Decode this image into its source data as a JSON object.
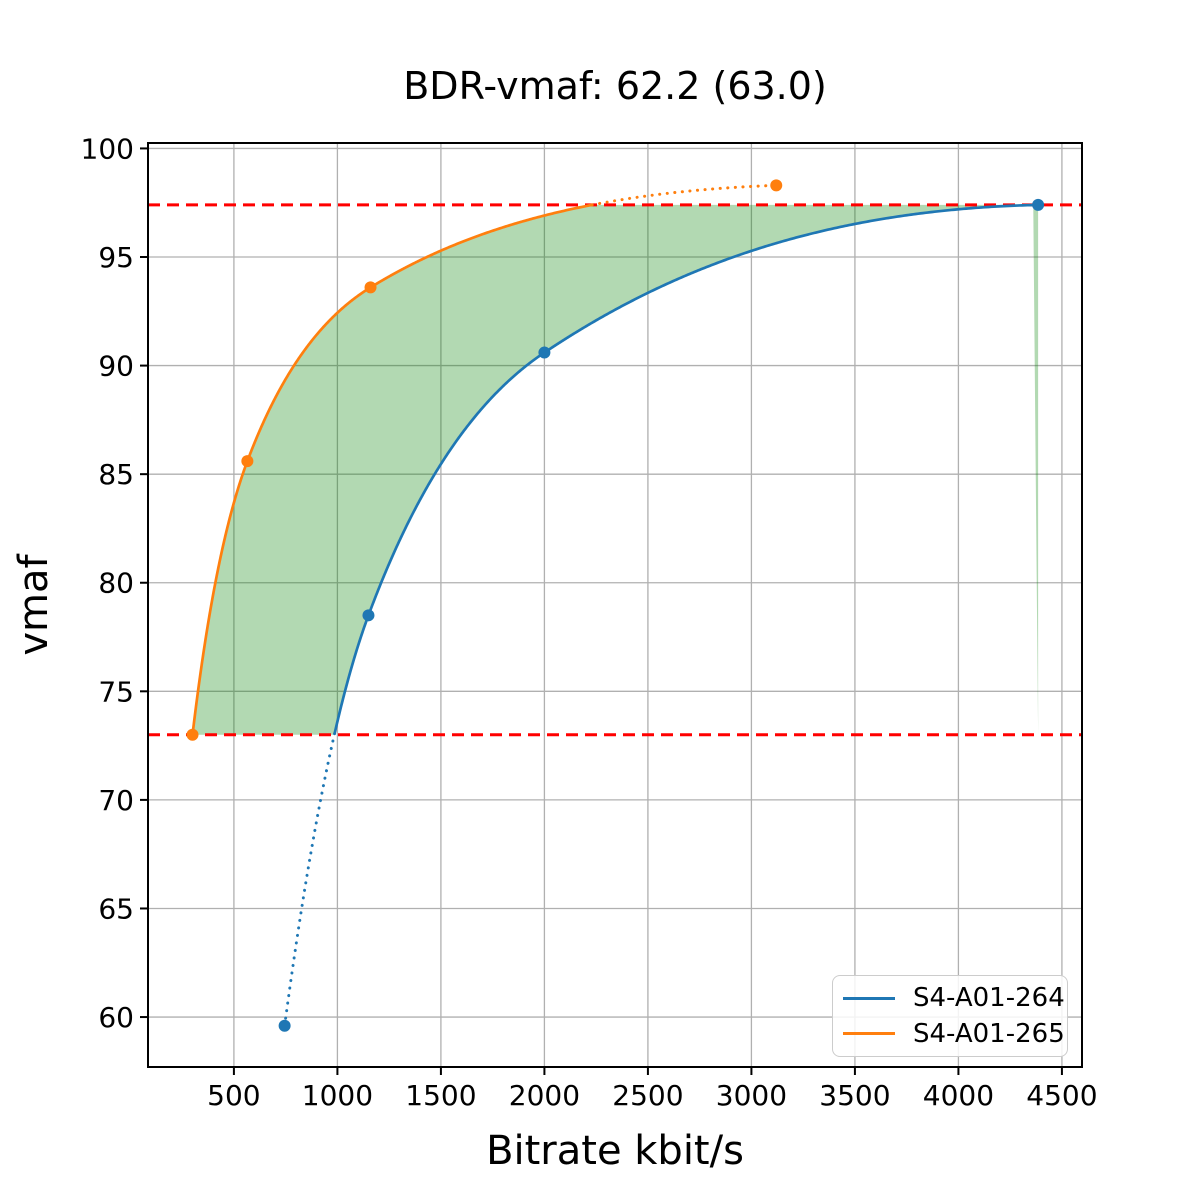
{
  "figure": {
    "background": "#ffffff"
  },
  "chart_data": {
    "type": "line",
    "title": "BDR-vmaf: 62.2 (63.0)",
    "xlabel": "Bitrate kbit/s",
    "ylabel": "vmaf",
    "xlim": [
      85,
      4597
    ],
    "ylim": [
      57.7,
      100.25
    ],
    "xticks": [
      500,
      1000,
      1500,
      2000,
      2500,
      3000,
      3500,
      4000,
      4500
    ],
    "yticks": [
      60,
      65,
      70,
      75,
      80,
      85,
      90,
      95,
      100
    ],
    "grid": true,
    "grid_color": "#b0b0b0",
    "legend_position": "lower right",
    "interpolation": "monotone-cubic-in-log-bitrate",
    "series": [
      {
        "name": "S4-A01-264",
        "color": "#1f77b4",
        "x": [
          745,
          1150,
          2000,
          4385
        ],
        "y": [
          59.6,
          78.5,
          90.6,
          97.4
        ]
      },
      {
        "name": "S4-A01-265",
        "color": "#ff7f0e",
        "x": [
          300,
          565,
          1160,
          3120
        ],
        "y": [
          73.0,
          85.6,
          93.6,
          98.3
        ]
      }
    ],
    "hlines": [
      {
        "y": 73.0,
        "color": "#ff0000",
        "style": "dashed"
      },
      {
        "y": 97.4,
        "color": "#ff0000",
        "style": "dashed"
      }
    ],
    "overlap_y_range": [
      73.0,
      97.4
    ],
    "shaded_region": {
      "between_series": [
        "S4-A01-264",
        "S4-A01-265"
      ],
      "y_range": [
        73.0,
        97.4
      ],
      "color": "#008000",
      "opacity": 0.3
    }
  }
}
